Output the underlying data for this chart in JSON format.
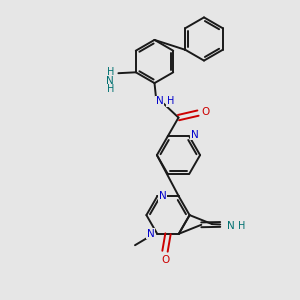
{
  "bg_color": "#e6e6e6",
  "bond_color": "#1a1a1a",
  "bond_width": 1.4,
  "N_color": "#0000cc",
  "O_color": "#cc0000",
  "NH_color": "#007070",
  "figsize": [
    3.0,
    3.0
  ],
  "dpi": 100,
  "xlim": [
    0,
    10
  ],
  "ylim": [
    0,
    10
  ]
}
